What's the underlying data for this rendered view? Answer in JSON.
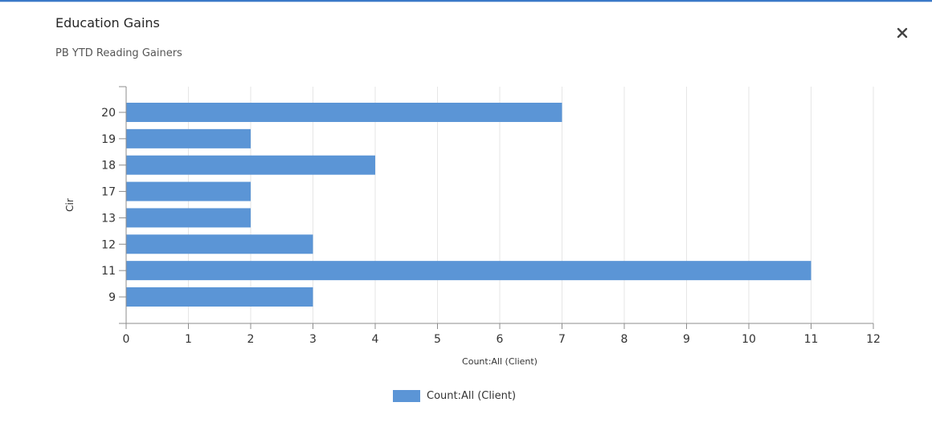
{
  "header": {
    "title": "Education Gains",
    "subtitle": "PB YTD Reading Gainers"
  },
  "icons": {
    "close": "close-icon"
  },
  "colors": {
    "bar": "#5b95d6",
    "axis": "#8c8c8c",
    "grid": "#e6e6e6",
    "accent": "#3b79c8"
  },
  "chart_data": {
    "type": "bar",
    "orientation": "horizontal",
    "categories": [
      "20",
      "19",
      "18",
      "17",
      "13",
      "12",
      "11",
      "9"
    ],
    "series": [
      {
        "name": "Count:All (Client)",
        "values": [
          7,
          2,
          4,
          2,
          2,
          3,
          11,
          3
        ]
      }
    ],
    "xlabel": "Count:All (Client)",
    "ylabel": "Cir",
    "xlim": [
      0,
      12
    ],
    "xticks": [
      "0",
      "1",
      "2",
      "3",
      "4",
      "5",
      "6",
      "7",
      "8",
      "9",
      "10",
      "11",
      "12"
    ],
    "grid": "vertical",
    "legend": "bottom-center"
  }
}
